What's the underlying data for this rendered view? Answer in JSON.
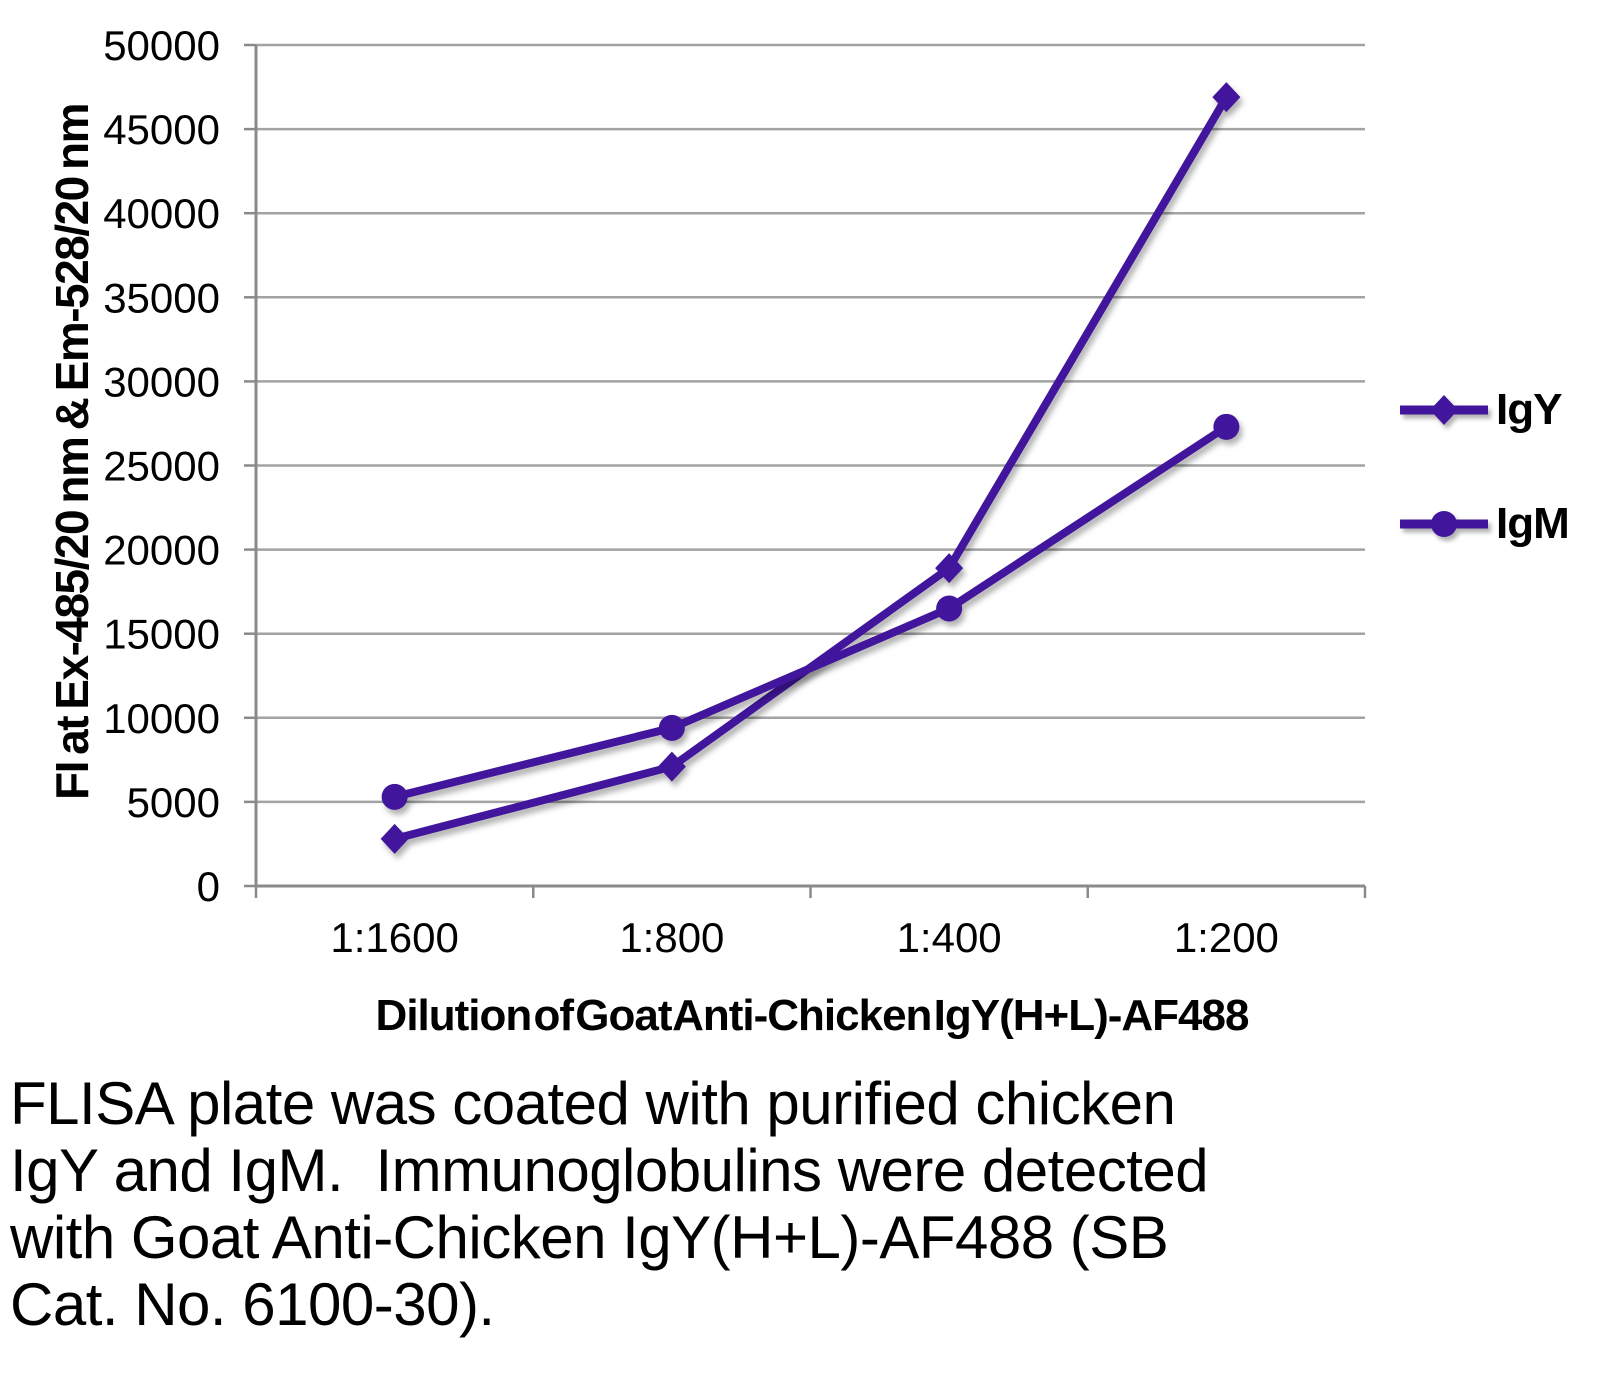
{
  "chart_data": {
    "type": "line",
    "categories": [
      "1:1600",
      "1:800",
      "1:400",
      "1:200"
    ],
    "series": [
      {
        "name": "IgY",
        "marker": "diamond",
        "values": [
          2800,
          7100,
          18900,
          46900
        ]
      },
      {
        "name": "IgM",
        "marker": "circle",
        "values": [
          5300,
          9400,
          16500,
          27300
        ]
      }
    ],
    "xlabel": "Dilution of Goat Anti-Chicken IgY(H+L)-AF488",
    "ylabel": "FI at Ex-485/20 nm & Em-528/20 nm",
    "ylim": [
      0,
      50000
    ],
    "ytick_step": 5000,
    "grid": true,
    "legend_position": "right",
    "series_color": "#41169C",
    "gridline_color": "#A3A3A3",
    "axis_color": "#8A8A8A",
    "text_color": "#000000"
  },
  "caption": {
    "text": "FLISA plate was coated with purified chicken\nIgY and IgM.  Immunoglobulins were detected\nwith Goat Anti-Chicken IgY(H+L)-AF488 (SB\nCat. No. 6100-30)."
  }
}
